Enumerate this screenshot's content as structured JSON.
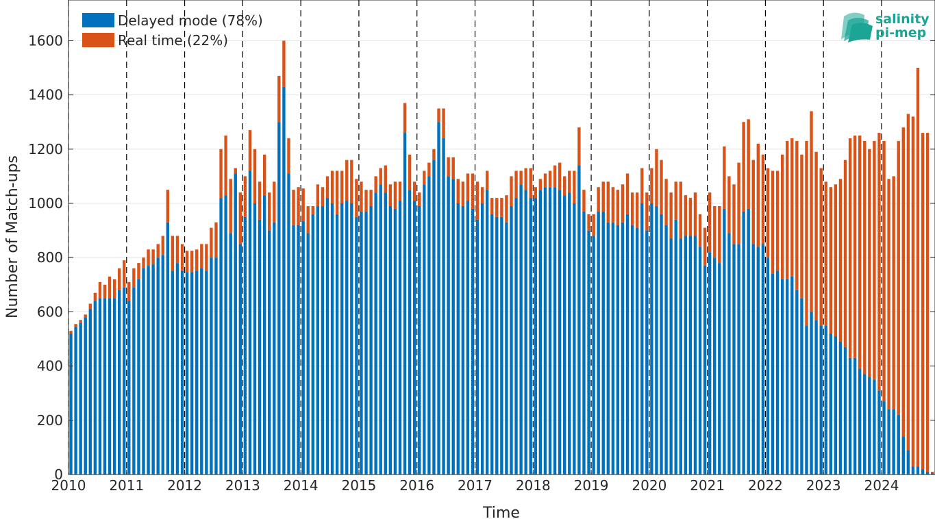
{
  "chart_data": {
    "type": "bar",
    "stacked": true,
    "xlabel": "Time",
    "ylabel": "Number of Match-ups",
    "ylim": [
      0,
      1750
    ],
    "yticks": [
      0,
      200,
      400,
      600,
      800,
      1000,
      1200,
      1400,
      1600
    ],
    "xlim": [
      2010,
      2024.92
    ],
    "xtick_labels": [
      "2010",
      "2011",
      "2012",
      "2013",
      "2014",
      "2015",
      "2016",
      "2017",
      "2018",
      "2019",
      "2020",
      "2021",
      "2022",
      "2023",
      "2024"
    ],
    "year_dividers": [
      2010,
      2011,
      2012,
      2013,
      2014,
      2015,
      2016,
      2017,
      2018,
      2019,
      2020,
      2021,
      2022,
      2023,
      2024
    ],
    "grid": true,
    "legend_position": "top-left",
    "start": "2010-01",
    "interval": "monthly",
    "series": [
      {
        "name": "Delayed mode (78%)",
        "color": "#0072bd",
        "values": [
          520,
          545,
          560,
          580,
          610,
          640,
          650,
          650,
          650,
          650,
          680,
          690,
          640,
          690,
          720,
          760,
          770,
          775,
          800,
          810,
          930,
          750,
          780,
          750,
          745,
          745,
          750,
          760,
          750,
          800,
          800,
          1020,
          1030,
          890,
          1110,
          850,
          950,
          1120,
          1000,
          940,
          1030,
          900,
          930,
          1300,
          1430,
          1110,
          920,
          920,
          935,
          890,
          960,
          990,
          990,
          1020,
          1000,
          960,
          1000,
          1010,
          1000,
          950,
          970,
          970,
          990,
          1040,
          1070,
          1040,
          990,
          980,
          1010,
          1260,
          1050,
          1010,
          990,
          1070,
          1100,
          1160,
          1300,
          1240,
          1100,
          1090,
          1000,
          990,
          1010,
          980,
          940,
          1000,
          1050,
          960,
          950,
          950,
          930,
          990,
          1020,
          1070,
          1050,
          1020,
          1020,
          1050,
          1060,
          1060,
          1060,
          1050,
          1030,
          1040,
          1000,
          1140,
          970,
          900,
          880,
          970,
          970,
          930,
          930,
          920,
          930,
          960,
          920,
          910,
          1000,
          900,
          1000,
          990,
          960,
          920,
          870,
          940,
          870,
          880,
          880,
          880,
          840,
          770,
          820,
          800,
          780,
          980,
          890,
          850,
          850,
          970,
          980,
          850,
          840,
          850,
          800,
          740,
          750,
          720,
          720,
          730,
          680,
          650,
          550,
          600,
          570,
          550,
          550,
          520,
          510,
          490,
          470,
          430,
          430,
          390,
          370,
          360,
          350,
          310,
          270,
          240,
          240,
          220,
          140,
          90,
          30,
          30,
          20,
          10,
          5
        ]
      },
      {
        "name": "Real time (22%)",
        "color": "#d95319",
        "values": [
          10,
          10,
          10,
          10,
          20,
          30,
          60,
          50,
          80,
          70,
          80,
          100,
          70,
          70,
          60,
          40,
          60,
          55,
          50,
          70,
          120,
          130,
          100,
          100,
          80,
          80,
          80,
          90,
          100,
          110,
          130,
          180,
          220,
          200,
          20,
          190,
          150,
          150,
          200,
          140,
          150,
          140,
          150,
          170,
          170,
          130,
          130,
          140,
          120,
          100,
          30,
          80,
          70,
          80,
          120,
          160,
          120,
          150,
          160,
          140,
          110,
          80,
          60,
          60,
          60,
          100,
          80,
          100,
          70,
          110,
          130,
          70,
          50,
          50,
          50,
          40,
          50,
          110,
          70,
          80,
          90,
          90,
          100,
          130,
          140,
          60,
          70,
          60,
          70,
          70,
          100,
          110,
          100,
          50,
          80,
          110,
          40,
          40,
          50,
          60,
          80,
          100,
          70,
          80,
          120,
          140,
          80,
          60,
          80,
          90,
          110,
          150,
          130,
          130,
          140,
          150,
          120,
          130,
          130,
          140,
          130,
          210,
          200,
          170,
          170,
          140,
          210,
          150,
          140,
          160,
          120,
          140,
          220,
          190,
          210,
          230,
          210,
          220,
          300,
          330,
          330,
          310,
          380,
          330,
          330,
          380,
          370,
          460,
          510,
          510,
          550,
          530,
          680,
          740,
          620,
          580,
          530,
          540,
          560,
          600,
          690,
          810,
          820,
          860,
          860,
          840,
          880,
          950,
          960,
          850,
          860,
          1010,
          1140,
          1240,
          1290,
          1470,
          1240,
          1250,
          5
        ]
      }
    ]
  },
  "logo": {
    "line1": "salinity",
    "line2": "pi-mep",
    "color": "#1aa595"
  }
}
